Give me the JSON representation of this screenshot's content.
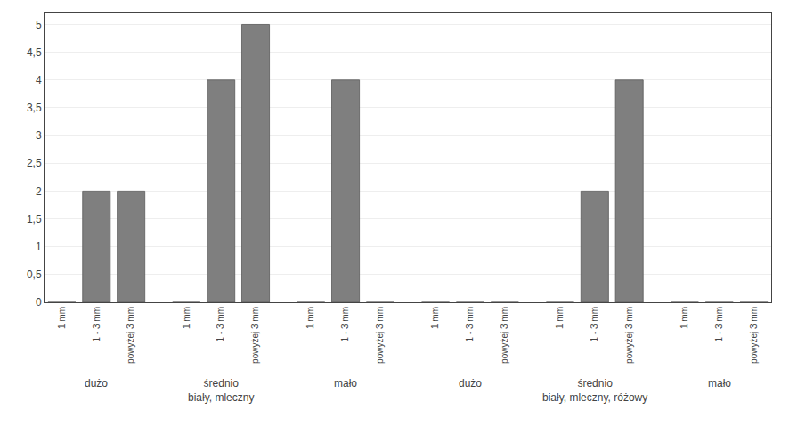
{
  "chart_data": {
    "type": "bar",
    "categories": [
      "1 mm",
      "1 - 3 mm",
      "powyżej 3 mm",
      "1 mm",
      "1 - 3 mm",
      "powyżej 3 mm",
      "1 mm",
      "1 - 3 mm",
      "powyżej 3 mm",
      "1 mm",
      "1 - 3 mm",
      "powyżej 3 mm",
      "1 mm",
      "1 - 3 mm",
      "powyżej 3 mm",
      "1 mm",
      "1 - 3 mm",
      "powyżej 3 mm"
    ],
    "values": [
      0,
      2,
      2,
      0,
      4,
      5,
      0,
      4,
      0,
      0,
      0,
      0,
      0,
      2,
      4,
      0,
      0,
      0
    ],
    "color": "#7f7f7f",
    "annotations": [
      [
        "dużo"
      ],
      [
        "średnio",
        "biały, mleczny"
      ],
      [
        "mało"
      ],
      [
        "dużo"
      ],
      [
        "średnio",
        "biały, mleczny, różowy"
      ],
      [
        "mało"
      ]
    ],
    "ylim": [
      0,
      5.2
    ],
    "yticks": [
      0,
      {
        "value": 0.5,
        "label": "0,5"
      },
      1,
      {
        "value": 1.5,
        "label": "1,5"
      },
      2,
      {
        "value": 2.5,
        "label": "2,5"
      },
      3,
      {
        "value": 3.5,
        "label": "3,5"
      },
      4,
      {
        "value": 4.5,
        "label": "4,5"
      },
      5
    ],
    "grid": true
  }
}
